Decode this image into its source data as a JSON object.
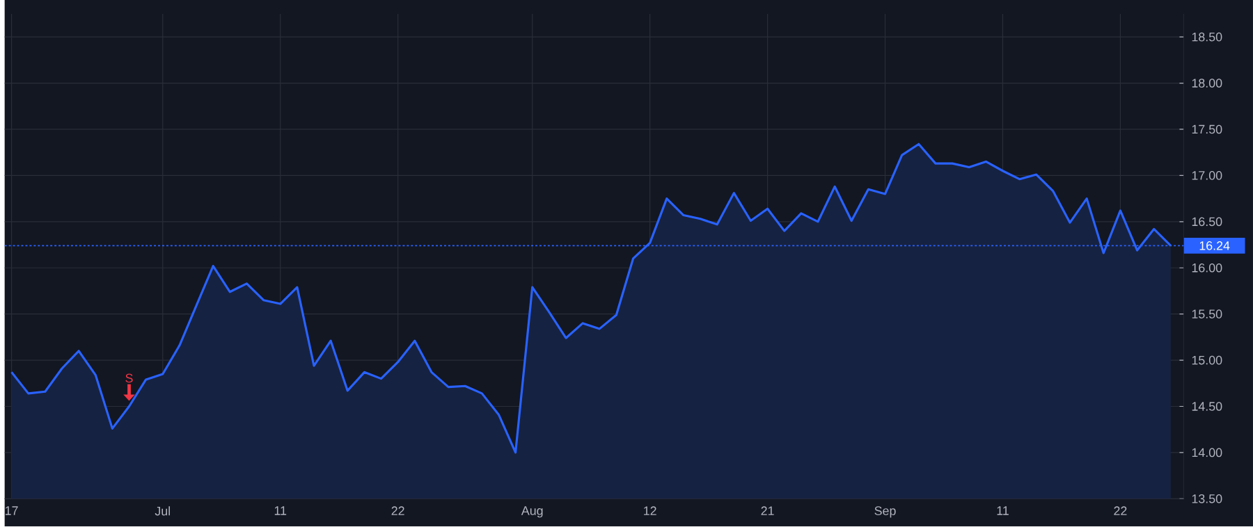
{
  "chart_data": {
    "type": "area",
    "color": "#2962ff",
    "categories": [
      "17",
      null,
      null,
      null,
      null,
      null,
      null,
      null,
      null,
      "Jul",
      null,
      null,
      null,
      null,
      null,
      null,
      "11",
      null,
      null,
      null,
      null,
      null,
      null,
      "22",
      null,
      null,
      null,
      null,
      null,
      null,
      null,
      "Aug",
      null,
      null,
      null,
      null,
      null,
      null,
      "12",
      null,
      null,
      null,
      null,
      null,
      null,
      "21",
      null,
      null,
      null,
      null,
      null,
      null,
      "Sep",
      null,
      null,
      null,
      null,
      null,
      null,
      "11",
      null,
      null,
      null,
      null,
      null,
      null,
      "22",
      null,
      null,
      null
    ],
    "values": [
      14.87,
      14.64,
      14.66,
      14.91,
      15.1,
      14.84,
      14.26,
      14.5,
      14.79,
      14.85,
      15.16,
      15.59,
      16.02,
      15.74,
      15.83,
      15.65,
      15.61,
      15.79,
      14.94,
      15.21,
      14.67,
      14.87,
      14.8,
      14.98,
      15.21,
      14.87,
      14.71,
      14.72,
      14.64,
      14.41,
      14.0,
      15.79,
      15.52,
      15.24,
      15.4,
      15.34,
      15.49,
      16.1,
      16.27,
      16.75,
      16.57,
      16.53,
      16.47,
      16.81,
      16.51,
      16.64,
      16.4,
      16.59,
      16.5,
      16.88,
      16.51,
      16.85,
      16.8,
      17.22,
      17.34,
      17.13,
      17.13,
      17.09,
      17.15,
      17.05,
      16.96,
      17.01,
      16.83,
      16.49,
      16.75,
      16.16,
      16.62,
      16.19,
      16.42,
      16.24
    ],
    "ylim": [
      13.5,
      18.75
    ],
    "yticks": [
      {
        "value": 13.5,
        "label": "13.50"
      },
      {
        "value": 14.0,
        "label": "14.00"
      },
      {
        "value": 14.5,
        "label": "14.50"
      },
      {
        "value": 15.0,
        "label": "15.00"
      },
      {
        "value": 15.5,
        "label": "15.50"
      },
      {
        "value": 16.0,
        "label": "16.00"
      },
      {
        "value": 16.5,
        "label": "16.50"
      },
      {
        "value": 17.0,
        "label": "17.00"
      },
      {
        "value": 17.5,
        "label": "17.50"
      },
      {
        "value": 18.0,
        "label": "18.00"
      },
      {
        "value": 18.5,
        "label": "18.50"
      }
    ],
    "grid": true,
    "ref_lines": [
      {
        "axis": "y",
        "value": 16.24,
        "label": "16.24",
        "color": "#2962ff",
        "line_style": "dotted"
      }
    ],
    "annotations": [
      {
        "text": "S",
        "y": 14.5
      }
    ]
  }
}
